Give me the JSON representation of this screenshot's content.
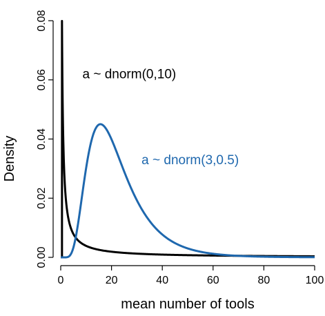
{
  "chart_data": {
    "type": "line",
    "title": "",
    "xlabel": "mean number of tools",
    "ylabel": "Density",
    "xlim": [
      0,
      100
    ],
    "ylim": [
      0,
      0.08
    ],
    "x_ticks": [
      0,
      20,
      40,
      60,
      80,
      100
    ],
    "y_ticks": [
      0.0,
      0.02,
      0.04,
      0.06,
      0.08
    ],
    "x_tick_labels": [
      "0",
      "20",
      "40",
      "60",
      "80",
      "100"
    ],
    "y_tick_labels": [
      "0.00",
      "0.02",
      "0.04",
      "0.06",
      "0.08"
    ],
    "grid": false,
    "legend": "none",
    "series": [
      {
        "color": "#000000",
        "distribution": "lognormal",
        "meanlog": 0,
        "sdlog": 10,
        "x": [
          0.5,
          1,
          2,
          3,
          5,
          10,
          20,
          40,
          60,
          80,
          100
        ],
        "y": [
          0.0798,
          0.0399,
          0.0199,
          0.0133,
          0.0079,
          0.0039,
          0.0019,
          0.00092,
          0.0006,
          0.00044,
          0.00035
        ]
      },
      {
        "color": "#1f68ae",
        "distribution": "lognormal",
        "meanlog": 3,
        "sdlog": 0.5,
        "x": [
          2,
          5,
          10,
          15.6,
          20,
          30,
          40,
          50,
          60,
          80,
          100
        ],
        "y": [
          0.0,
          0.0027,
          0.0293,
          0.0449,
          0.0417,
          0.0226,
          0.0105,
          0.0047,
          0.0021,
          0.0004,
          0.0001
        ]
      }
    ],
    "annotations": [
      {
        "text": "a ~ dnorm(0,10)",
        "x": 27,
        "y": 0.0605,
        "color": "#000000"
      },
      {
        "text": "a ~ dnorm(3,0.5)",
        "x": 51,
        "y": 0.0315,
        "color": "#1f68ae"
      }
    ]
  }
}
